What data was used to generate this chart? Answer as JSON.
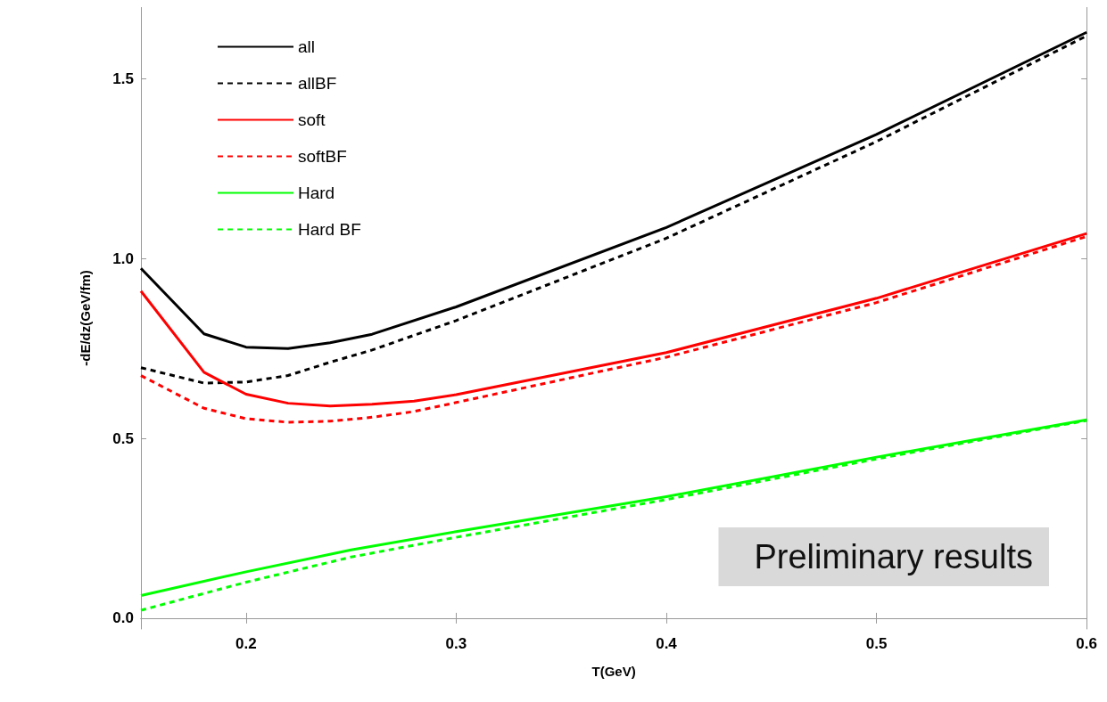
{
  "chart_data": {
    "type": "line",
    "xlabel": "T(GeV)",
    "ylabel": "-dE/dz(GeV/fm)",
    "xlim": [
      0.15,
      0.6
    ],
    "xticks": [
      0.2,
      0.3,
      0.4,
      0.5,
      0.6
    ],
    "ylim": [
      -0.03,
      1.7
    ],
    "yticks": [
      {
        "value": 0,
        "label": "0.0"
      },
      0.5,
      {
        "value": 1,
        "label": "1.0"
      },
      1.5
    ],
    "grid": false,
    "legend": "top left",
    "marker": "none",
    "annotations": [
      "Preliminary results"
    ],
    "series": [
      {
        "name": "all",
        "color": "#000000",
        "line_style": "solid",
        "x": [
          0.15,
          0.18,
          0.2,
          0.22,
          0.24,
          0.26,
          0.3,
          0.4,
          0.5,
          0.6
        ],
        "values": [
          0.973,
          0.791,
          0.754,
          0.75,
          0.766,
          0.79,
          0.866,
          1.087,
          1.346,
          1.63
        ]
      },
      {
        "name": "allBF",
        "color": "#000000",
        "line_style": "dashed",
        "x": [
          0.15,
          0.18,
          0.2,
          0.22,
          0.24,
          0.26,
          0.3,
          0.4,
          0.5,
          0.6
        ],
        "values": [
          0.697,
          0.654,
          0.657,
          0.675,
          0.712,
          0.746,
          0.828,
          1.057,
          1.326,
          1.62
        ]
      },
      {
        "name": "soft",
        "color": "#ff0000",
        "line_style": "solid",
        "x": [
          0.15,
          0.18,
          0.2,
          0.22,
          0.24,
          0.26,
          0.28,
          0.3,
          0.4,
          0.5,
          0.6
        ],
        "values": [
          0.91,
          0.684,
          0.623,
          0.598,
          0.59,
          0.595,
          0.604,
          0.622,
          0.739,
          0.89,
          1.07
        ]
      },
      {
        "name": "softBF",
        "color": "#ff0000",
        "line_style": "dashed",
        "x": [
          0.15,
          0.18,
          0.2,
          0.22,
          0.24,
          0.26,
          0.28,
          0.3,
          0.4,
          0.5,
          0.6
        ],
        "values": [
          0.675,
          0.584,
          0.555,
          0.545,
          0.548,
          0.559,
          0.575,
          0.6,
          0.726,
          0.878,
          1.062
        ]
      },
      {
        "name": "Hard",
        "color": "#00ff00",
        "line_style": "solid",
        "x": [
          0.15,
          0.2,
          0.25,
          0.3,
          0.4,
          0.5,
          0.6
        ],
        "values": [
          0.063,
          0.129,
          0.19,
          0.241,
          0.338,
          0.448,
          0.552
        ]
      },
      {
        "name": "Hard BF",
        "color": "#00ff00",
        "line_style": "dashed",
        "x": [
          0.15,
          0.2,
          0.25,
          0.3,
          0.4,
          0.5,
          0.6
        ],
        "values": [
          0.022,
          0.1,
          0.17,
          0.225,
          0.33,
          0.443,
          0.55
        ]
      }
    ]
  }
}
